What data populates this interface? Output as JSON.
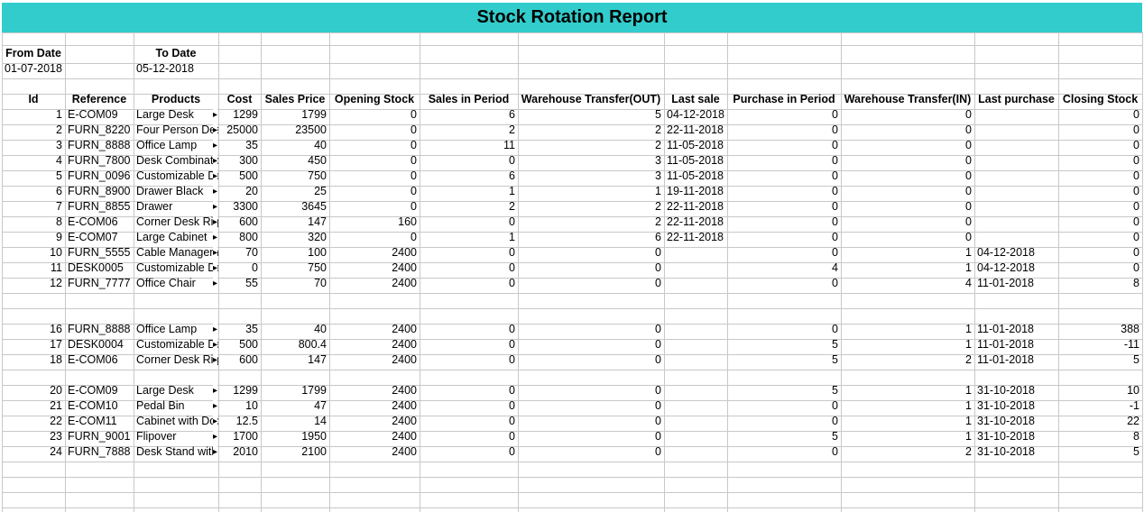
{
  "title": "Stock Rotation Report",
  "date_labels": {
    "from_label": "From Date",
    "to_label": "To Date",
    "from_value": "01-07-2018",
    "to_value": "05-12-2018"
  },
  "columns": [
    "Id",
    "Reference",
    "Products",
    "Cost",
    "Sales Price",
    "Opening Stock",
    "Sales in Period",
    "Warehouse Transfer(OUT)",
    "Last sale",
    "Purchase in Period",
    "Warehouse Transfer(IN)",
    "Last purchase",
    "Closing Stock"
  ],
  "rows": [
    {
      "id": "1",
      "ref": "E-COM09",
      "product": "Large Desk",
      "cost": "1299",
      "price": "1799",
      "opening": "0",
      "sales": "6",
      "wt_out": "5",
      "last_sale": "04-12-2018",
      "purchase": "0",
      "wt_in": "0",
      "last_purchase": "",
      "closing": "0"
    },
    {
      "id": "2",
      "ref": "FURN_8220",
      "product": "Four Person Desk",
      "cost": "25000",
      "price": "23500",
      "opening": "0",
      "sales": "2",
      "wt_out": "2",
      "last_sale": "22-11-2018",
      "purchase": "0",
      "wt_in": "0",
      "last_purchase": "",
      "closing": "0"
    },
    {
      "id": "3",
      "ref": "FURN_8888",
      "product": "Office Lamp",
      "cost": "35",
      "price": "40",
      "opening": "0",
      "sales": "11",
      "wt_out": "2",
      "last_sale": "11-05-2018",
      "purchase": "0",
      "wt_in": "0",
      "last_purchase": "",
      "closing": "0"
    },
    {
      "id": "4",
      "ref": "FURN_7800",
      "product": "Desk Combination",
      "cost": "300",
      "price": "450",
      "opening": "0",
      "sales": "0",
      "wt_out": "3",
      "last_sale": "11-05-2018",
      "purchase": "0",
      "wt_in": "0",
      "last_purchase": "",
      "closing": "0"
    },
    {
      "id": "5",
      "ref": "FURN_0096",
      "product": "Customizable Desk",
      "cost": "500",
      "price": "750",
      "opening": "0",
      "sales": "6",
      "wt_out": "3",
      "last_sale": "11-05-2018",
      "purchase": "0",
      "wt_in": "0",
      "last_purchase": "",
      "closing": "0"
    },
    {
      "id": "6",
      "ref": "FURN_8900",
      "product": "Drawer Black",
      "cost": "20",
      "price": "25",
      "opening": "0",
      "sales": "1",
      "wt_out": "1",
      "last_sale": "19-11-2018",
      "purchase": "0",
      "wt_in": "0",
      "last_purchase": "",
      "closing": "0"
    },
    {
      "id": "7",
      "ref": "FURN_8855",
      "product": "Drawer",
      "cost": "3300",
      "price": "3645",
      "opening": "0",
      "sales": "2",
      "wt_out": "2",
      "last_sale": "22-11-2018",
      "purchase": "0",
      "wt_in": "0",
      "last_purchase": "",
      "closing": "0"
    },
    {
      "id": "8",
      "ref": "E-COM06",
      "product": "Corner Desk Right Sit",
      "cost": "600",
      "price": "147",
      "opening": "160",
      "sales": "0",
      "wt_out": "2",
      "last_sale": "22-11-2018",
      "purchase": "0",
      "wt_in": "0",
      "last_purchase": "",
      "closing": "0"
    },
    {
      "id": "9",
      "ref": "E-COM07",
      "product": "Large Cabinet",
      "cost": "800",
      "price": "320",
      "opening": "0",
      "sales": "1",
      "wt_out": "6",
      "last_sale": "22-11-2018",
      "purchase": "0",
      "wt_in": "0",
      "last_purchase": "",
      "closing": "0"
    },
    {
      "id": "10",
      "ref": "FURN_5555",
      "product": "Cable Management Box",
      "cost": "70",
      "price": "100",
      "opening": "2400",
      "sales": "0",
      "wt_out": "0",
      "last_sale": "",
      "purchase": "0",
      "wt_in": "1",
      "last_purchase": "04-12-2018",
      "closing": "0"
    },
    {
      "id": "11",
      "ref": "DESK0005",
      "product": "Customizable Desk",
      "cost": "0",
      "price": "750",
      "opening": "2400",
      "sales": "0",
      "wt_out": "0",
      "last_sale": "",
      "purchase": "4",
      "wt_in": "1",
      "last_purchase": "04-12-2018",
      "closing": "0"
    },
    {
      "id": "12",
      "ref": "FURN_7777",
      "product": "Office Chair",
      "cost": "55",
      "price": "70",
      "opening": "2400",
      "sales": "0",
      "wt_out": "0",
      "last_sale": "",
      "purchase": "0",
      "wt_in": "4",
      "last_purchase": "11-01-2018",
      "closing": "8"
    },
    null,
    null,
    {
      "id": "16",
      "ref": "FURN_8888",
      "product": "Office Lamp",
      "cost": "35",
      "price": "40",
      "opening": "2400",
      "sales": "0",
      "wt_out": "0",
      "last_sale": "",
      "purchase": "0",
      "wt_in": "1",
      "last_purchase": "11-01-2018",
      "closing": "388"
    },
    {
      "id": "17",
      "ref": "DESK0004",
      "product": "Customizable Desk",
      "cost": "500",
      "price": "800.4",
      "opening": "2400",
      "sales": "0",
      "wt_out": "0",
      "last_sale": "",
      "purchase": "5",
      "wt_in": "1",
      "last_purchase": "11-01-2018",
      "closing": "-11"
    },
    {
      "id": "18",
      "ref": "E-COM06",
      "product": "Corner Desk Right Sit",
      "cost": "600",
      "price": "147",
      "opening": "2400",
      "sales": "0",
      "wt_out": "0",
      "last_sale": "",
      "purchase": "5",
      "wt_in": "2",
      "last_purchase": "11-01-2018",
      "closing": "5"
    },
    null,
    {
      "id": "20",
      "ref": "E-COM09",
      "product": "Large Desk",
      "cost": "1299",
      "price": "1799",
      "opening": "2400",
      "sales": "0",
      "wt_out": "0",
      "last_sale": "",
      "purchase": "5",
      "wt_in": "1",
      "last_purchase": "31-10-2018",
      "closing": "10"
    },
    {
      "id": "21",
      "ref": "E-COM10",
      "product": "Pedal Bin",
      "cost": "10",
      "price": "47",
      "opening": "2400",
      "sales": "0",
      "wt_out": "0",
      "last_sale": "",
      "purchase": "0",
      "wt_in": "1",
      "last_purchase": "31-10-2018",
      "closing": "-1"
    },
    {
      "id": "22",
      "ref": "E-COM11",
      "product": "Cabinet with Doors",
      "cost": "12.5",
      "price": "14",
      "opening": "2400",
      "sales": "0",
      "wt_out": "0",
      "last_sale": "",
      "purchase": "0",
      "wt_in": "1",
      "last_purchase": "31-10-2018",
      "closing": "22"
    },
    {
      "id": "23",
      "ref": "FURN_9001",
      "product": "Flipover",
      "cost": "1700",
      "price": "1950",
      "opening": "2400",
      "sales": "0",
      "wt_out": "0",
      "last_sale": "",
      "purchase": "5",
      "wt_in": "1",
      "last_purchase": "31-10-2018",
      "closing": "8"
    },
    {
      "id": "24",
      "ref": "FURN_7888",
      "product": "Desk Stand with Screen",
      "cost": "2010",
      "price": "2100",
      "opening": "2400",
      "sales": "0",
      "wt_out": "0",
      "last_sale": "",
      "purchase": "0",
      "wt_in": "2",
      "last_purchase": "31-10-2018",
      "closing": "5"
    }
  ],
  "colors": {
    "title_bg": "#33cccc",
    "grid": "#c8c8c8"
  }
}
